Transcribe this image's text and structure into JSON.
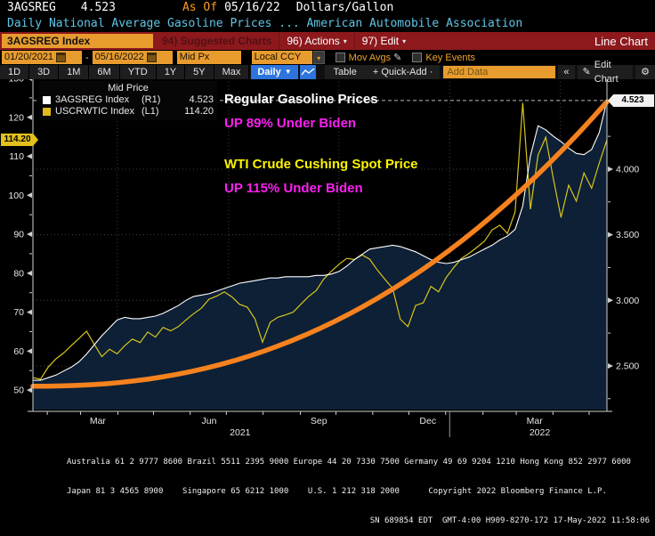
{
  "header": {
    "ticker": "3AGSREG",
    "price": "4.523",
    "as_of_label": "As Of",
    "as_of_date": "05/16/22",
    "unit": "Dollars/Gallon",
    "description": "Daily National Average Gasoline Prices ... American Automobile Association"
  },
  "toolbar": {
    "security": "3AGSREG Index",
    "suggested_charts": "94) Suggested Charts",
    "actions": "96) Actions",
    "edit": "97) Edit",
    "view_mode": "Line Chart"
  },
  "controls": {
    "date_from": "01/20/2021",
    "date_to": "05/16/2022",
    "separator": "-",
    "price_type": "Mid Px",
    "currency": "Local CCY",
    "mov_avgs_label": "Mov Avgs",
    "key_events_label": "Key Events"
  },
  "tabs": {
    "periods": [
      "1D",
      "3D",
      "1M",
      "6M",
      "YTD",
      "1Y",
      "5Y",
      "Max"
    ],
    "frequency": "Daily",
    "table_label": "Table",
    "quick_add_label": "+ Quick-Add ·",
    "add_data_placeholder": "Add Data",
    "collapse_label": "«",
    "edit_chart_label": "Edit Chart"
  },
  "icons": {
    "dropdown": "▾",
    "dropdown_solid": "▼",
    "pencil": "✎",
    "gear": "⚙"
  },
  "colors": {
    "amber": "#e89c2e",
    "toolbar_red": "#8d191d",
    "cyan_text": "#5fc6e8",
    "orange_text": "#ff9b1e",
    "magenta_annotation": "#f921f0",
    "yellow_annotation": "#fdf500",
    "gas_line": "#ffffff",
    "wti_line": "#d8c41c",
    "trend_line": "#f6821f",
    "area_fill": "#0d2036",
    "blue_button": "#2d74dd"
  },
  "legend": {
    "title": "Mid Price",
    "series": [
      {
        "name": "3AGSREG Index",
        "axis_ref": "(R1)",
        "value": "4.523",
        "color": "#ffffff"
      },
      {
        "name": "USCRWTIC Index",
        "axis_ref": "(L1)",
        "value": "114.20",
        "color": "#e0b91e"
      }
    ]
  },
  "annotations": {
    "gas_title": "Regular Gasoline Prices",
    "gas_change": "UP 89% Under Biden",
    "wti_title": "WTI Crude Cushing Spot Price",
    "wti_change": "UP 115% Under Biden"
  },
  "axis_tags": {
    "right_last": "4.523",
    "left_last": "114.20"
  },
  "chart_data": {
    "type": "line",
    "title": "Regular Gasoline Prices vs WTI Crude Cushing Spot Price",
    "x_range": [
      "01/20/2021",
      "05/16/2022"
    ],
    "x_month_labels": [
      {
        "label": "Mar",
        "t": 0.113
      },
      {
        "label": "Jun",
        "t": 0.307
      },
      {
        "label": "Sep",
        "t": 0.498
      },
      {
        "label": "Dec",
        "t": 0.688
      },
      {
        "label": "Mar",
        "t": 0.874
      }
    ],
    "x_year_labels": [
      {
        "label": "2021",
        "t": 0.361
      },
      {
        "label": "2022",
        "t": 0.883
      }
    ],
    "v_gridlines_t": [
      0.147,
      0.341,
      0.533,
      0.726,
      0.919
    ],
    "year_divider_t": 0.726,
    "month_ticks_t": [
      0.025,
      0.083,
      0.148,
      0.21,
      0.274,
      0.337,
      0.401,
      0.466,
      0.528,
      0.592,
      0.655,
      0.719,
      0.784,
      0.842,
      0.906,
      0.969
    ],
    "left_axis": {
      "min": 45,
      "max": 130,
      "tick_values": [
        130,
        120,
        110,
        100,
        90,
        80,
        70,
        60,
        50
      ],
      "minor_values": [
        125,
        115,
        105,
        95,
        85,
        75,
        65,
        55
      ],
      "last_value": 114.2
    },
    "right_axis": {
      "min": 2.167,
      "max": 4.692,
      "ticks": [
        {
          "label": "4.000",
          "value": 4.0
        },
        {
          "label": "3.500",
          "value": 3.5
        },
        {
          "label": "3.000",
          "value": 3.0
        },
        {
          "label": "2.500",
          "value": 2.5
        }
      ],
      "minor_values": [
        4.25,
        3.75,
        3.25,
        2.75,
        2.25
      ],
      "last_value": 4.523
    },
    "grid": "dotted horizontal at right-axis ticks, dotted vertical at quarter boundaries",
    "legend_position": "top-left",
    "series": [
      {
        "name": "3AGSREG Index",
        "axis": "right",
        "color": "#ffffff",
        "fill": "#0d2036",
        "values": [
          2.39,
          2.39,
          2.41,
          2.43,
          2.46,
          2.49,
          2.53,
          2.59,
          2.66,
          2.73,
          2.79,
          2.85,
          2.87,
          2.86,
          2.86,
          2.87,
          2.88,
          2.9,
          2.93,
          2.96,
          3.0,
          3.03,
          3.04,
          3.05,
          3.07,
          3.09,
          3.11,
          3.13,
          3.14,
          3.15,
          3.16,
          3.17,
          3.17,
          3.18,
          3.18,
          3.18,
          3.18,
          3.19,
          3.19,
          3.2,
          3.22,
          3.26,
          3.31,
          3.35,
          3.39,
          3.4,
          3.41,
          3.42,
          3.41,
          3.39,
          3.37,
          3.34,
          3.31,
          3.29,
          3.28,
          3.29,
          3.31,
          3.33,
          3.36,
          3.39,
          3.42,
          3.46,
          3.49,
          3.54,
          3.72,
          4.1,
          4.33,
          4.3,
          4.25,
          4.21,
          4.16,
          4.12,
          4.11,
          4.15,
          4.28,
          4.523
        ]
      },
      {
        "name": "USCRWTIC Index",
        "axis": "left",
        "color": "#d8c41c",
        "values": [
          53.2,
          52.8,
          55.9,
          58.0,
          59.5,
          61.4,
          63.2,
          65.1,
          61.8,
          58.6,
          60.5,
          59.3,
          61.4,
          63.1,
          62.2,
          64.9,
          63.6,
          66.1,
          65.2,
          66.3,
          68.0,
          69.6,
          71.0,
          73.3,
          74.1,
          75.2,
          73.9,
          72.0,
          71.3,
          68.3,
          62.3,
          67.4,
          68.7,
          69.3,
          70.0,
          72.0,
          74.0,
          75.5,
          78.5,
          80.5,
          82.3,
          83.8,
          83.5,
          84.7,
          83.6,
          80.8,
          78.4,
          76.1,
          68.2,
          66.3,
          71.7,
          72.4,
          76.6,
          75.2,
          78.9,
          81.5,
          83.8,
          85.1,
          86.6,
          88.2,
          91.1,
          92.3,
          90.2,
          95.7,
          123.7,
          96.4,
          110.3,
          114.9,
          104.2,
          94.3,
          102.6,
          98.5,
          105.7,
          101.8,
          108.3,
          114.2
        ]
      }
    ],
    "trend": {
      "name": "trend-annotation",
      "axis": "left",
      "start": 51,
      "end": 124,
      "power": 2.3,
      "color": "#f6821f",
      "width": 5.5
    }
  },
  "footer": {
    "line1": "Australia 61 2 9777 8600 Brazil 5511 2395 9000 Europe 44 20 7330 7500 Germany 49 69 9204 1210 Hong Kong 852 2977 6000",
    "line2": "Japan 81 3 4565 8900    Singapore 65 6212 1000    U.S. 1 212 318 2000      Copyright 2022 Bloomberg Finance L.P.",
    "line3": "SN 689854 EDT  GMT-4:00 H909-8270-172 17-May-2022 11:58:06"
  }
}
